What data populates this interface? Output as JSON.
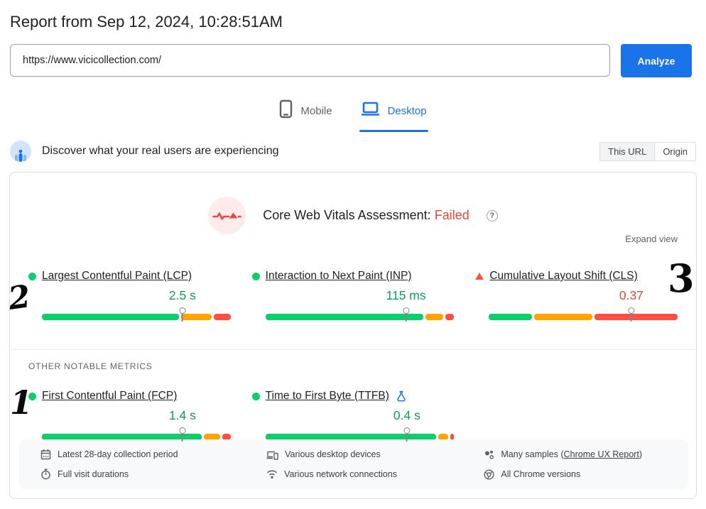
{
  "page": {
    "title": "Report from Sep 12, 2024, 10:28:51AM"
  },
  "url_bar": {
    "value": "https://www.vicicollection.com/",
    "analyze_label": "Analyze"
  },
  "tabs": [
    {
      "label": "Mobile",
      "active": false
    },
    {
      "label": "Desktop",
      "active": true
    }
  ],
  "field_header": {
    "text": "Discover what your real users are experiencing",
    "toggle": [
      "This URL",
      "Origin"
    ]
  },
  "assessment": {
    "title": "Core Web Vitals Assessment:",
    "status": "Failed",
    "expand_label": "Expand view"
  },
  "sections": {
    "other_metrics_label": "OTHER NOTABLE METRICS"
  },
  "chart_data": {
    "type": "bar",
    "description": "Core Web Vitals field-data distribution bars; marker shows 75th percentile",
    "metrics": [
      {
        "id": "lcp",
        "name": "Largest Contentful Paint (LCP)",
        "value": "2.5 s",
        "status": "good",
        "segments_pct": {
          "good": 73,
          "needs_improvement": 16,
          "poor": 9
        },
        "marker_pct": 74.5
      },
      {
        "id": "inp",
        "name": "Interaction to Next Paint (INP)",
        "value": "115 ms",
        "status": "good",
        "segments_pct": {
          "good": 84,
          "needs_improvement": 9.5,
          "poor": 4.5
        },
        "marker_pct": 74.5
      },
      {
        "id": "cls",
        "name": "Cumulative Layout Shift (CLS)",
        "value": "0.37",
        "status": "poor",
        "segments_pct": {
          "good": 23,
          "needs_improvement": 31,
          "poor": 44
        },
        "marker_pct": 75.5
      },
      {
        "id": "fcp",
        "name": "First Contentful Paint (FCP)",
        "value": "1.4 s",
        "status": "good",
        "segments_pct": {
          "good": 85,
          "needs_improvement": 8.5,
          "poor": 4.5
        },
        "marker_pct": 74.5
      },
      {
        "id": "ttfb",
        "name": "Time to First Byte (TTFB)",
        "value": "0.4 s",
        "status": "good",
        "experimental": true,
        "segments_pct": {
          "good": 91,
          "needs_improvement": 5.5,
          "poor": 2
        },
        "marker_pct": 75
      }
    ]
  },
  "footer": {
    "items": [
      {
        "icon": "calendar-icon",
        "label": "Latest 28-day collection period"
      },
      {
        "icon": "stopwatch-icon",
        "label": "Full visit durations"
      },
      {
        "icon": "devices-icon",
        "label": "Various desktop devices"
      },
      {
        "icon": "network-icon",
        "label": "Various network connections"
      },
      {
        "icon": "samples-icon",
        "label_prefix": "Many samples (",
        "link": "Chrome UX Report",
        "label_suffix": ")"
      },
      {
        "icon": "chrome-icon",
        "label": "All Chrome versions"
      }
    ]
  },
  "annotations": [
    {
      "text": "2",
      "near": "LCP"
    },
    {
      "text": "3",
      "near": "CLS"
    },
    {
      "text": "1",
      "near": "FCP"
    }
  ],
  "colors": {
    "accent_blue": "#1a73e8",
    "good_green_bar": "#0cce6b",
    "good_green_text": "#0f9d58",
    "needs_improvement_orange": "#ffa400",
    "poor_red_bar": "#ff4e42",
    "failed_red_text": "#e8453c",
    "border_gray": "#dadce0",
    "footer_bg": "#f8f9fa"
  }
}
